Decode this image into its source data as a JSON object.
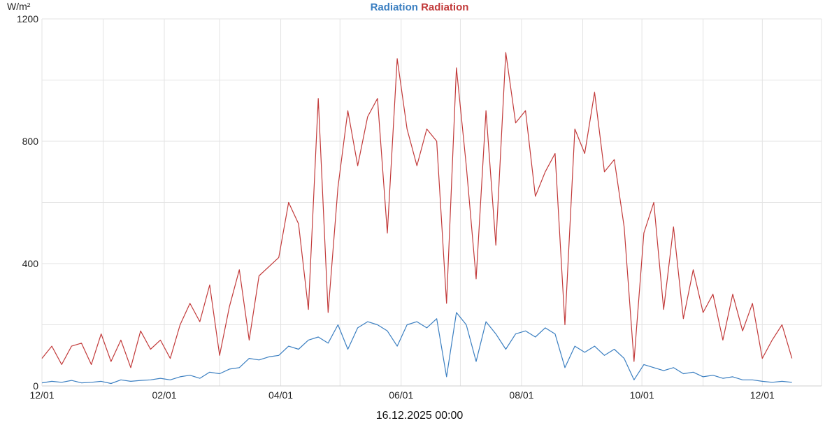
{
  "chart_data": {
    "type": "line",
    "title": "",
    "ylabel": "W/m²",
    "xlabel": "16.12.2025 00:00",
    "ylim": [
      0,
      1200
    ],
    "yticks": [
      0,
      400,
      800,
      1200
    ],
    "xlim": [
      "2024-12-01",
      "2025-12-31"
    ],
    "xticks": [
      {
        "date": "2024-12-01",
        "label": "12/01"
      },
      {
        "date": "2025-02-01",
        "label": "02/01"
      },
      {
        "date": "2025-04-01",
        "label": "04/01"
      },
      {
        "date": "2025-06-01",
        "label": "06/01"
      },
      {
        "date": "2025-08-01",
        "label": "08/01"
      },
      {
        "date": "2025-10-01",
        "label": "10/01"
      },
      {
        "date": "2025-12-01",
        "label": "12/01"
      }
    ],
    "grid": true,
    "legend_position": "top-center",
    "x": [
      "2024-12-01",
      "2024-12-06",
      "2024-12-11",
      "2024-12-16",
      "2024-12-21",
      "2024-12-26",
      "2024-12-31",
      "2025-01-05",
      "2025-01-10",
      "2025-01-15",
      "2025-01-20",
      "2025-01-25",
      "2025-01-30",
      "2025-02-04",
      "2025-02-09",
      "2025-02-14",
      "2025-02-19",
      "2025-02-24",
      "2025-03-01",
      "2025-03-06",
      "2025-03-11",
      "2025-03-16",
      "2025-03-21",
      "2025-03-26",
      "2025-03-31",
      "2025-04-05",
      "2025-04-10",
      "2025-04-15",
      "2025-04-20",
      "2025-04-25",
      "2025-04-30",
      "2025-05-05",
      "2025-05-10",
      "2025-05-15",
      "2025-05-20",
      "2025-05-25",
      "2025-05-30",
      "2025-06-04",
      "2025-06-09",
      "2025-06-14",
      "2025-06-19",
      "2025-06-24",
      "2025-06-29",
      "2025-07-04",
      "2025-07-09",
      "2025-07-14",
      "2025-07-19",
      "2025-07-24",
      "2025-07-29",
      "2025-08-03",
      "2025-08-08",
      "2025-08-13",
      "2025-08-18",
      "2025-08-23",
      "2025-08-28",
      "2025-09-02",
      "2025-09-07",
      "2025-09-12",
      "2025-09-17",
      "2025-09-22",
      "2025-09-27",
      "2025-10-02",
      "2025-10-07",
      "2025-10-12",
      "2025-10-17",
      "2025-10-22",
      "2025-10-27",
      "2025-11-01",
      "2025-11-06",
      "2025-11-11",
      "2025-11-16",
      "2025-11-21",
      "2025-11-26",
      "2025-12-01",
      "2025-12-06",
      "2025-12-11",
      "2025-12-16"
    ],
    "series": [
      {
        "name": "Radiation",
        "color": "#3b7fc1",
        "values": [
          10,
          15,
          12,
          18,
          10,
          12,
          15,
          8,
          20,
          15,
          18,
          20,
          25,
          20,
          30,
          35,
          25,
          45,
          40,
          55,
          60,
          90,
          85,
          95,
          100,
          130,
          120,
          150,
          160,
          140,
          200,
          120,
          190,
          210,
          200,
          180,
          130,
          200,
          210,
          190,
          220,
          30,
          240,
          200,
          80,
          210,
          170,
          120,
          170,
          180,
          160,
          190,
          170,
          60,
          130,
          110,
          130,
          100,
          120,
          90,
          20,
          70,
          60,
          50,
          60,
          40,
          45,
          30,
          35,
          25,
          30,
          20,
          20,
          15,
          12,
          15,
          12
        ]
      },
      {
        "name": "Radiation",
        "color": "#c23a3a",
        "values": [
          90,
          130,
          70,
          130,
          140,
          70,
          170,
          80,
          150,
          60,
          180,
          120,
          150,
          90,
          200,
          270,
          210,
          330,
          100,
          260,
          380,
          150,
          360,
          390,
          420,
          600,
          530,
          250,
          940,
          240,
          650,
          900,
          720,
          880,
          940,
          500,
          1070,
          840,
          720,
          840,
          800,
          270,
          1040,
          720,
          350,
          900,
          460,
          1090,
          860,
          900,
          620,
          700,
          760,
          200,
          840,
          760,
          960,
          700,
          740,
          520,
          80,
          500,
          600,
          250,
          520,
          220,
          380,
          240,
          300,
          150,
          300,
          180,
          270,
          90,
          150,
          200,
          90
        ]
      }
    ]
  }
}
